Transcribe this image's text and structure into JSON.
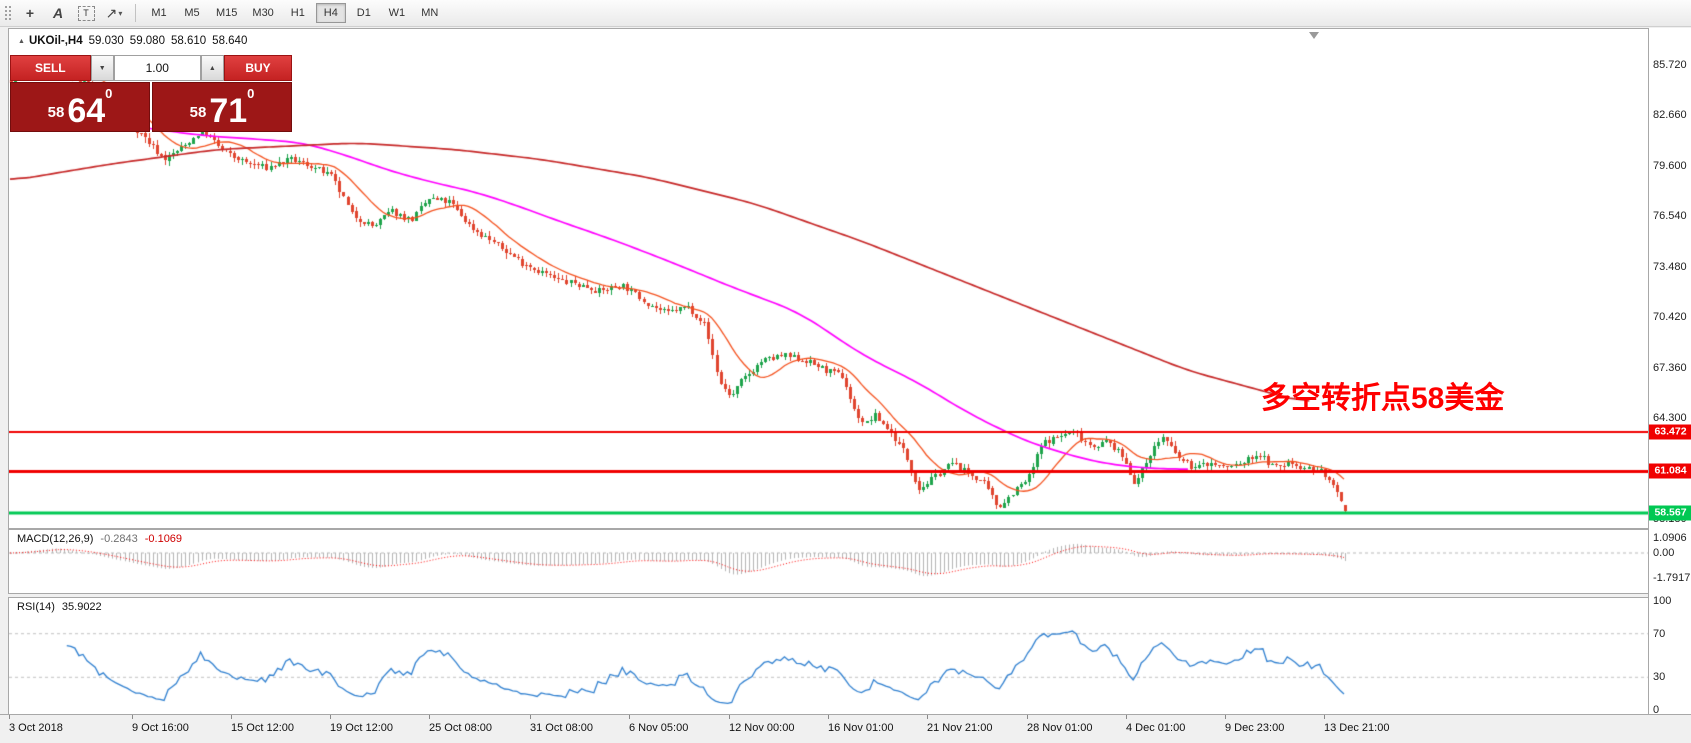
{
  "toolbar": {
    "timeframes": [
      "M1",
      "M5",
      "M15",
      "M30",
      "H1",
      "H4",
      "D1",
      "W1",
      "MN"
    ],
    "active_timeframe": "H4",
    "icons": [
      "crosshair-icon",
      "text-icon",
      "label-icon",
      "arrow-style-icon"
    ]
  },
  "symbol_info": {
    "symbol": "UKOil-,H4",
    "open": "59.030",
    "high": "59.080",
    "low": "58.610",
    "close": "58.640"
  },
  "trade_panel": {
    "sell_label": "SELL",
    "buy_label": "BUY",
    "lot_value": "1.00",
    "sell_price": {
      "small": "58",
      "big": "64",
      "sup": "0"
    },
    "buy_price": {
      "small": "58",
      "big": "71",
      "sup": "0"
    }
  },
  "annotation": {
    "text": "多空转折点58美金",
    "color": "#ff0000"
  },
  "indicators": {
    "macd": {
      "label": "MACD(12,26,9)",
      "value_main": "-0.2843",
      "value_signal": "-0.1069",
      "axis_labels": [
        "1.0906",
        "0.00",
        "-1.7917"
      ],
      "axis_values": [
        1.0906,
        0,
        -1.7917
      ]
    },
    "rsi": {
      "label": "RSI(14)",
      "value": "35.9022",
      "axis_labels": [
        "100",
        "70",
        "30",
        "0"
      ],
      "axis_values": [
        100,
        70,
        30,
        0
      ],
      "levels": [
        70,
        30
      ]
    }
  },
  "chart_data": {
    "type": "candlestick",
    "symbol": "UKOil-",
    "timeframe": "H4",
    "current_ohlc": {
      "open": 59.03,
      "high": 59.08,
      "low": 58.61,
      "close": 58.64
    },
    "price_axis_ticks": [
      "85.720",
      "82.660",
      "79.600",
      "76.540",
      "73.480",
      "70.420",
      "67.360",
      "64.300",
      "61.240",
      "58.180"
    ],
    "price_axis_values": [
      85.72,
      82.66,
      79.6,
      76.54,
      73.48,
      70.42,
      67.36,
      64.3,
      61.24,
      58.18
    ],
    "time_axis_labels": [
      "3 Oct 2018",
      "9 Oct 16:00",
      "15 Oct 12:00",
      "19 Oct 12:00",
      "25 Oct 08:00",
      "31 Oct 08:00",
      "6 Nov 05:00",
      "12 Nov 00:00",
      "16 Nov 01:00",
      "21 Nov 21:00",
      "28 Nov 01:00",
      "4 Dec 01:00",
      "9 Dec 23:00",
      "13 Dec 21:00"
    ],
    "hlines": [
      {
        "price": 63.472,
        "label": "63.472",
        "color": "#f00000",
        "width": 2
      },
      {
        "price": 61.084,
        "label": "61.084",
        "color": "#f00000",
        "width": 3
      },
      {
        "price": 58.567,
        "label": "58.567",
        "color": "#00c853",
        "width": 3
      }
    ],
    "candle_count": 330,
    "price_path": [
      [
        0.0,
        84.8
      ],
      [
        0.03,
        85.9
      ],
      [
        0.06,
        84.3
      ],
      [
        0.085,
        82.5
      ],
      [
        0.099,
        81.4
      ],
      [
        0.115,
        80.0
      ],
      [
        0.13,
        80.8
      ],
      [
        0.143,
        81.8
      ],
      [
        0.159,
        80.5
      ],
      [
        0.175,
        79.8
      ],
      [
        0.192,
        79.5
      ],
      [
        0.21,
        80.0
      ],
      [
        0.224,
        79.6
      ],
      [
        0.24,
        79.0
      ],
      [
        0.256,
        76.6
      ],
      [
        0.272,
        75.9
      ],
      [
        0.285,
        76.9
      ],
      [
        0.3,
        76.3
      ],
      [
        0.313,
        77.6
      ],
      [
        0.329,
        77.4
      ],
      [
        0.345,
        75.9
      ],
      [
        0.361,
        75.0
      ],
      [
        0.378,
        74.0
      ],
      [
        0.394,
        73.3
      ],
      [
        0.41,
        72.7
      ],
      [
        0.426,
        72.4
      ],
      [
        0.442,
        72.0
      ],
      [
        0.458,
        72.4
      ],
      [
        0.475,
        71.4
      ],
      [
        0.491,
        70.7
      ],
      [
        0.507,
        71.1
      ],
      [
        0.52,
        70.0
      ],
      [
        0.531,
        66.5
      ],
      [
        0.54,
        65.6
      ],
      [
        0.547,
        66.5
      ],
      [
        0.563,
        67.8
      ],
      [
        0.58,
        68.1
      ],
      [
        0.596,
        67.8
      ],
      [
        0.612,
        67.2
      ],
      [
        0.624,
        66.8
      ],
      [
        0.632,
        64.8
      ],
      [
        0.64,
        63.9
      ],
      [
        0.647,
        64.5
      ],
      [
        0.658,
        63.6
      ],
      [
        0.67,
        62.2
      ],
      [
        0.681,
        60.0
      ],
      [
        0.693,
        60.8
      ],
      [
        0.705,
        61.6
      ],
      [
        0.717,
        61.0
      ],
      [
        0.729,
        60.4
      ],
      [
        0.74,
        58.9
      ],
      [
        0.752,
        59.9
      ],
      [
        0.762,
        60.6
      ],
      [
        0.773,
        62.8
      ],
      [
        0.785,
        63.2
      ],
      [
        0.797,
        63.5
      ],
      [
        0.81,
        62.6
      ],
      [
        0.822,
        62.9
      ],
      [
        0.834,
        61.9
      ],
      [
        0.843,
        60.3
      ],
      [
        0.854,
        62.2
      ],
      [
        0.863,
        63.2
      ],
      [
        0.875,
        61.9
      ],
      [
        0.887,
        61.3
      ],
      [
        0.899,
        61.6
      ],
      [
        0.911,
        61.3
      ],
      [
        0.923,
        61.6
      ],
      [
        0.935,
        62.2
      ],
      [
        0.947,
        61.3
      ],
      [
        0.959,
        61.6
      ],
      [
        0.971,
        61.3
      ],
      [
        0.983,
        61.1
      ],
      [
        0.993,
        59.8
      ],
      [
        1.0,
        58.7
      ]
    ],
    "ma_slow": [
      [
        0.0,
        78.7
      ],
      [
        0.074,
        79.7
      ],
      [
        0.155,
        80.6
      ],
      [
        0.26,
        81.0
      ],
      [
        0.333,
        80.6
      ],
      [
        0.398,
        80.0
      ],
      [
        0.479,
        78.9
      ],
      [
        0.559,
        77.3
      ],
      [
        0.64,
        75.0
      ],
      [
        0.721,
        72.4
      ],
      [
        0.802,
        69.8
      ],
      [
        0.883,
        67.2
      ],
      [
        0.974,
        65.2
      ]
    ],
    "ma_magenta": [
      [
        0.085,
        82.1
      ],
      [
        0.12,
        81.7
      ],
      [
        0.15,
        81.4
      ],
      [
        0.19,
        81.2
      ],
      [
        0.22,
        81.0
      ],
      [
        0.25,
        80.3
      ],
      [
        0.285,
        79.3
      ],
      [
        0.317,
        78.6
      ],
      [
        0.35,
        78.0
      ],
      [
        0.38,
        77.2
      ],
      [
        0.41,
        76.3
      ],
      [
        0.446,
        75.3
      ],
      [
        0.479,
        74.3
      ],
      [
        0.51,
        73.3
      ],
      [
        0.543,
        72.2
      ],
      [
        0.56,
        71.7
      ],
      [
        0.592,
        70.7
      ],
      [
        0.64,
        68.1
      ],
      [
        0.68,
        66.5
      ],
      [
        0.721,
        64.5
      ],
      [
        0.762,
        62.9
      ],
      [
        0.802,
        61.9
      ],
      [
        0.826,
        61.5
      ],
      [
        0.85,
        61.3
      ],
      [
        0.883,
        61.2
      ]
    ],
    "colors": {
      "up": "#1fa44c",
      "down": "#e0452f",
      "ma_fast": "#f4511e",
      "ma_magenta": "#ff00ff",
      "ma_slow": "#c62828",
      "macd_hist": "#b4b4b4",
      "macd_signal": "#ff0000",
      "rsi_line": "#3080d0"
    }
  }
}
